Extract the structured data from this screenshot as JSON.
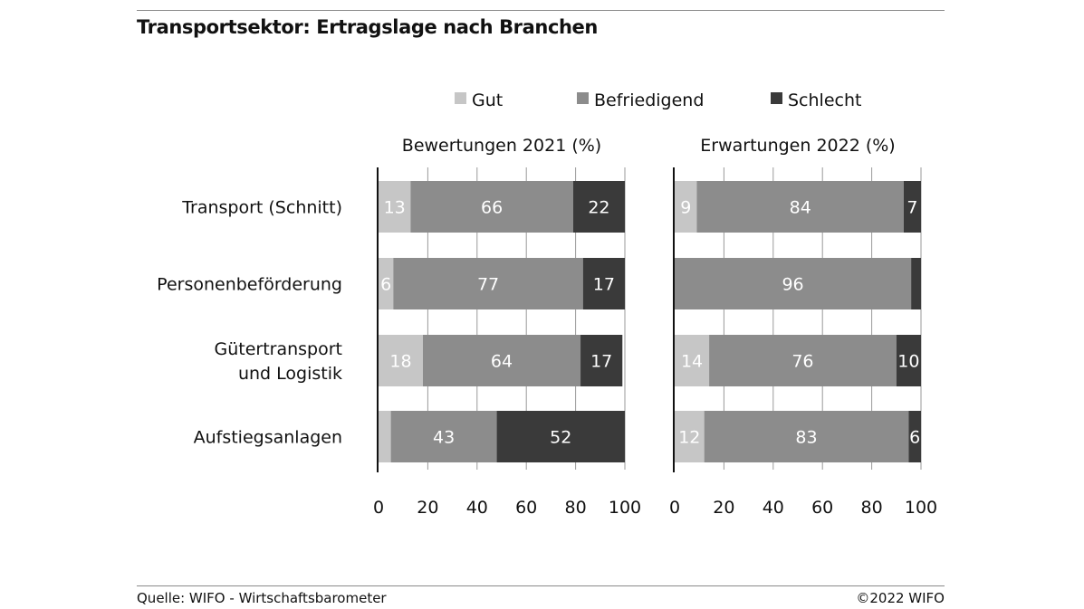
{
  "header": {
    "title": "Transportsektor: Ertragslage nach Branchen"
  },
  "footer": {
    "source": "Quelle: WIFO - Wirtschaftsbarometer",
    "copyright": "©2022 WIFO"
  },
  "colors": {
    "Gut": "#c6c6c6",
    "Befriedigend": "#8c8c8c",
    "Schlecht": "#3a3a3a"
  },
  "chart_data": {
    "type": "bar",
    "orientation": "horizontal",
    "stacked": true,
    "grid": true,
    "legend_position": "top",
    "categories": [
      "Transport (Schnitt)",
      "Personenbeförderung",
      "Gütertransport\nund Logistik",
      "Aufstiegsanlagen"
    ],
    "legend": [
      "Gut",
      "Befriedigend",
      "Schlecht"
    ],
    "xlim": [
      0,
      100
    ],
    "xticks": [
      0,
      20,
      40,
      60,
      80,
      100
    ],
    "panels": [
      {
        "title": "Bewertungen 2021 (%)",
        "series": [
          {
            "name": "Gut",
            "values": [
              13,
              6,
              18,
              5
            ],
            "labels": [
              "13",
              "6",
              "18",
              ""
            ]
          },
          {
            "name": "Befriedigend",
            "values": [
              66,
              77,
              64,
              43
            ],
            "labels": [
              "66",
              "77",
              "64",
              "43"
            ]
          },
          {
            "name": "Schlecht",
            "values": [
              22,
              17,
              17,
              52
            ],
            "labels": [
              "22",
              "17",
              "17",
              "52"
            ]
          }
        ]
      },
      {
        "title": "Erwartungen 2022 (%)",
        "series": [
          {
            "name": "Gut",
            "values": [
              9,
              0,
              14,
              12
            ],
            "labels": [
              "9",
              "",
              "14",
              "12"
            ]
          },
          {
            "name": "Befriedigend",
            "values": [
              84,
              96,
              76,
              83
            ],
            "labels": [
              "84",
              "96",
              "76",
              "83"
            ]
          },
          {
            "name": "Schlecht",
            "values": [
              7,
              4,
              10,
              6
            ],
            "labels": [
              "7",
              "",
              "10",
              "6"
            ]
          }
        ]
      }
    ]
  }
}
